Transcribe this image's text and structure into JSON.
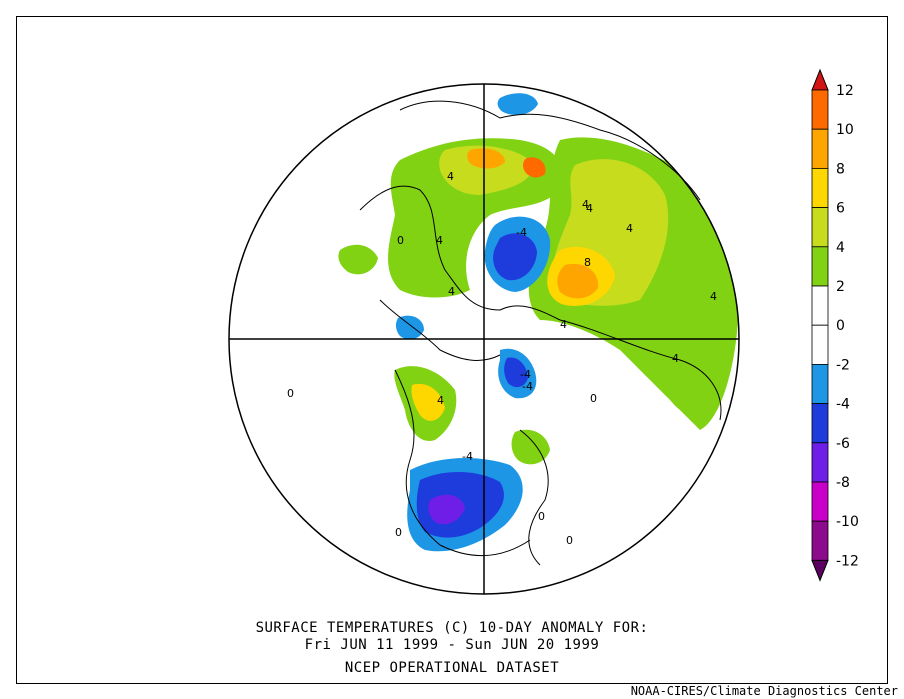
{
  "title": {
    "line1": "SURFACE TEMPERATURES (C)   10-DAY ANOMALY FOR:",
    "line2": "Fri JUN 11 1999 - Sun JUN 20 1999",
    "line3": "NCEP OPERATIONAL DATASET"
  },
  "footer": "NOAA-CIRES/Climate Diagnostics Center",
  "colorbar": {
    "labels": [
      "12",
      "10",
      "8",
      "6",
      "4",
      "2",
      "0",
      "-2",
      "-4",
      "-6",
      "-8",
      "-10",
      "-12"
    ],
    "colors": [
      "#5a0060",
      "#8c0a8c",
      "#c800c8",
      "#6e1ee6",
      "#1e3cdc",
      "#1e96e6",
      "#ffffff",
      "#ffffff",
      "#82d214",
      "#c8dc1e",
      "#ffd700",
      "#ffa500",
      "#ff6a00",
      "#d21414"
    ]
  },
  "contour_labels": [
    "4",
    "4",
    "4",
    "-4",
    "4",
    "4",
    "8",
    "4",
    "0",
    "4",
    "0",
    "4",
    "-4",
    "-4",
    "0",
    "-4",
    "0",
    "0",
    "0",
    "4",
    "4"
  ]
}
